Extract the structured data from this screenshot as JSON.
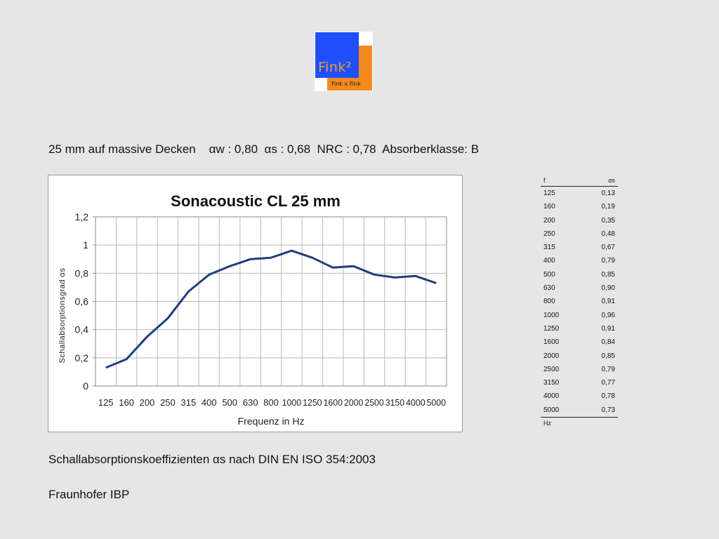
{
  "logo": {
    "word": "Fink²",
    "sub": "Fink x Fink"
  },
  "headline": {
    "prefix": "25 mm auf massive Decken",
    "alpha_w": "αw : 0,80",
    "alpha_s": "αs : 0,68",
    "nrc": "NRC : 0,78",
    "klasse": "Absorberklasse: B"
  },
  "caption": "Schallabsorptionskoeffizienten αs nach DIN EN ISO 354:2003",
  "source": "Fraunhofer IBP",
  "table": {
    "col_f": "f",
    "col_a": "αs",
    "unit": "Hz",
    "rows": [
      [
        "125",
        "0,13"
      ],
      [
        "160",
        "0,19"
      ],
      [
        "200",
        "0,35"
      ],
      [
        "250",
        "0,48"
      ],
      [
        "315",
        "0,67"
      ],
      [
        "400",
        "0,79"
      ],
      [
        "500",
        "0,85"
      ],
      [
        "630",
        "0,90"
      ],
      [
        "800",
        "0,91"
      ],
      [
        "1000",
        "0,96"
      ],
      [
        "1250",
        "0,91"
      ],
      [
        "1600",
        "0,84"
      ],
      [
        "2000",
        "0,85"
      ],
      [
        "2500",
        "0,79"
      ],
      [
        "3150",
        "0,77"
      ],
      [
        "4000",
        "0,78"
      ],
      [
        "5000",
        "0,73"
      ]
    ]
  },
  "chart_data": {
    "type": "line",
    "title": "Sonacoustic CL 25 mm",
    "xlabel": "Frequenz in Hz",
    "ylabel": "Schallabsorptionsgrad αs",
    "categories": [
      "125",
      "160",
      "200",
      "250",
      "315",
      "400",
      "500",
      "630",
      "800",
      "1000",
      "1250",
      "1600",
      "2000",
      "2500",
      "3150",
      "4000",
      "5000"
    ],
    "series": [
      {
        "values": [
          0.13,
          0.19,
          0.35,
          0.48,
          0.67,
          0.79,
          0.85,
          0.9,
          0.91,
          0.96,
          0.91,
          0.84,
          0.85,
          0.79,
          0.77,
          0.78,
          0.73
        ]
      }
    ],
    "ylim": [
      0,
      1.2
    ],
    "yticks": [
      "0",
      "0,2",
      "0,4",
      "0,6",
      "0,8",
      "1",
      "1,2"
    ],
    "grid": true,
    "line_color": "#1f3f7a"
  }
}
